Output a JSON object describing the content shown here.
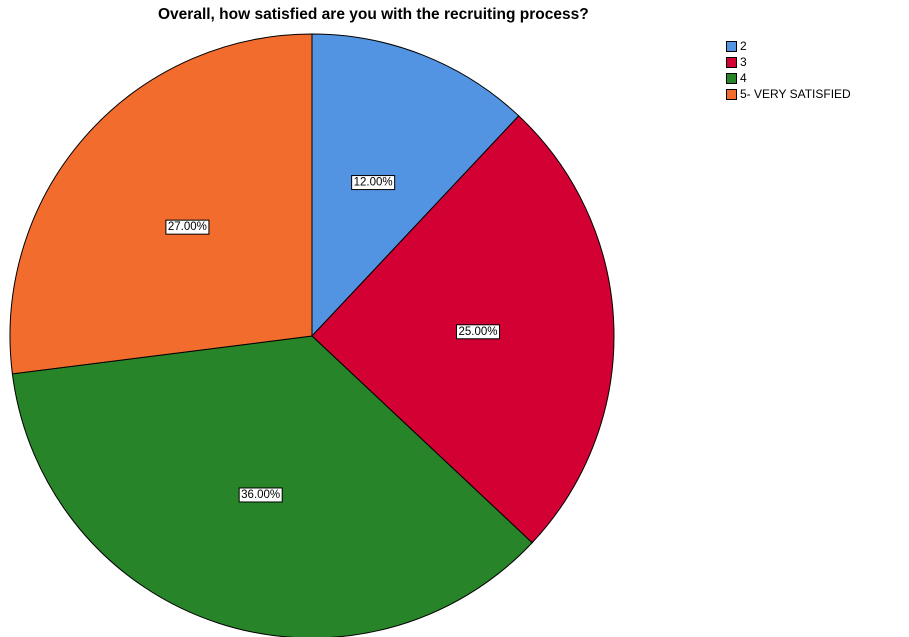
{
  "chart_data": {
    "type": "pie",
    "title": "Overall, how satisfied are you with the recruiting process?",
    "slices": [
      {
        "label": "2",
        "value": 12.0,
        "display": "12.00%",
        "color": "#5294e2"
      },
      {
        "label": "3",
        "value": 25.0,
        "display": "25.00%",
        "color": "#d20033"
      },
      {
        "label": "4",
        "value": 36.0,
        "display": "36.00%",
        "color": "#288428"
      },
      {
        "label": "5- VERY SATISFIED",
        "value": 27.0,
        "display": "27.00%",
        "color": "#f26c2d"
      }
    ],
    "start_angle": "12 o'clock",
    "direction": "clockwise",
    "legend_position": "top-right"
  }
}
